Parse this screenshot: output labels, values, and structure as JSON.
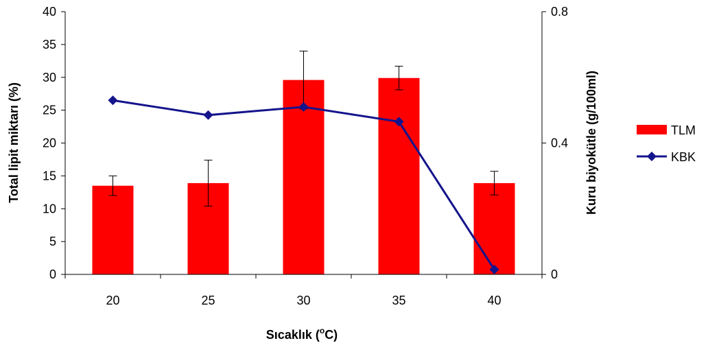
{
  "chart_data": {
    "type": "bar",
    "categories": [
      "20",
      "25",
      "30",
      "35",
      "40"
    ],
    "series": [
      {
        "name": "TLM",
        "kind": "bar",
        "axis": "left",
        "color": "#ff0000",
        "values": [
          13.5,
          13.9,
          29.6,
          29.9,
          13.9
        ],
        "error": [
          1.5,
          3.5,
          4.4,
          1.8,
          1.8
        ]
      },
      {
        "name": "KBK",
        "kind": "line",
        "axis": "right",
        "color": "#14148c",
        "marker": "diamond",
        "values": [
          0.53,
          0.485,
          0.51,
          0.465,
          0.015
        ]
      }
    ],
    "y_left": {
      "label": "Total lipit miktarı (%)",
      "ylim": [
        0,
        40
      ],
      "ticks": [
        "0",
        "5",
        "10",
        "15",
        "20",
        "25",
        "30",
        "35",
        "40"
      ]
    },
    "y_right": {
      "label": "Kuru biyokütle (g/100ml)",
      "ylim": [
        0,
        0.8
      ],
      "ticks": [
        "0",
        "0.4",
        "0.8"
      ]
    },
    "x_axis": {
      "label_main": "Sıcaklık (",
      "label_sup": "o",
      "label_end": "C)"
    },
    "grid": false,
    "legend": {
      "position": "right",
      "entries": [
        "TLM",
        "KBK"
      ]
    }
  }
}
